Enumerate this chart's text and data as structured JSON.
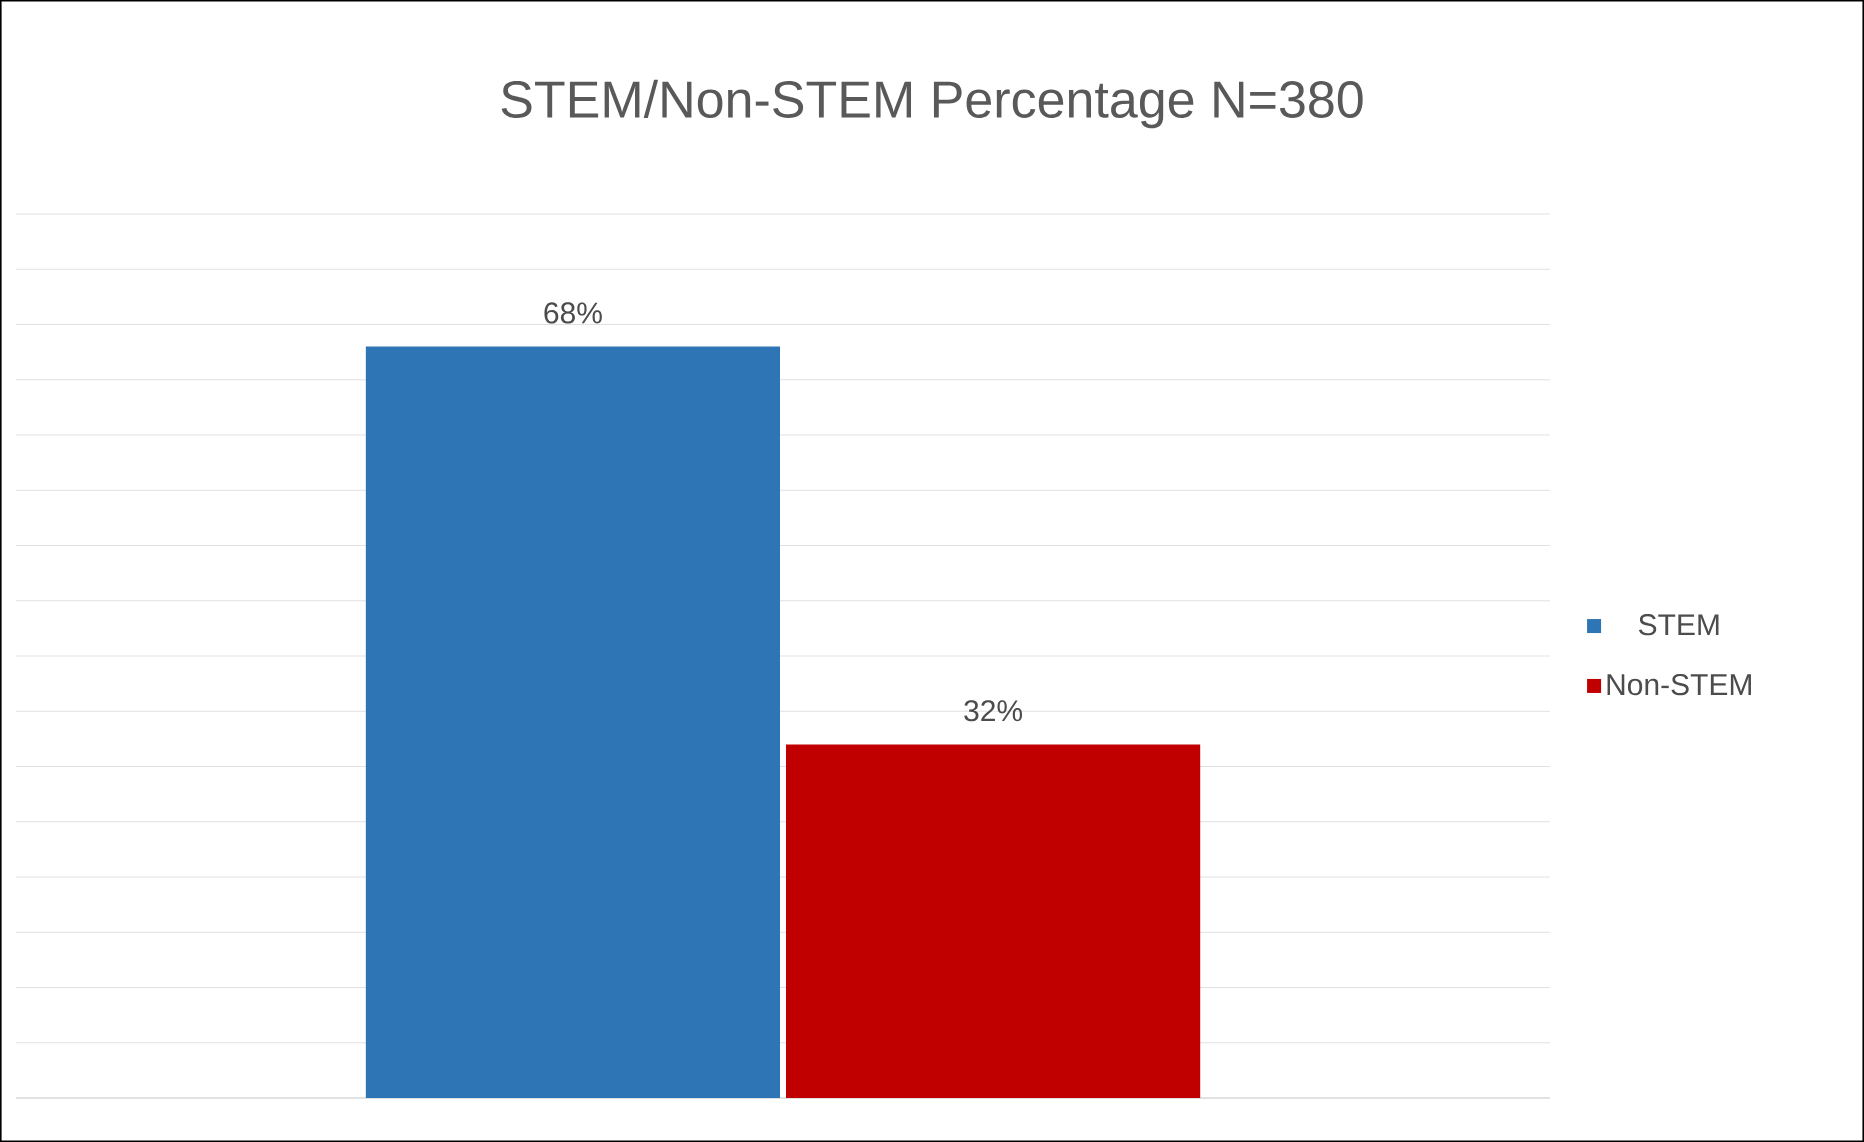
{
  "chart_data": {
    "type": "bar",
    "title": "STEM/Non-STEM Percentage N=380",
    "categories": [
      null
    ],
    "series": [
      {
        "name": "STEM",
        "color": "#2e75b6",
        "values": [
          68
        ],
        "value_labels": [
          "68%"
        ]
      },
      {
        "name": "Non-STEM",
        "color": "#c00000",
        "values": [
          32
        ],
        "value_labels": [
          "32%"
        ]
      }
    ],
    "ylim": [
      0,
      80
    ],
    "tick_labels": false,
    "grid": "y",
    "legend": "right"
  }
}
